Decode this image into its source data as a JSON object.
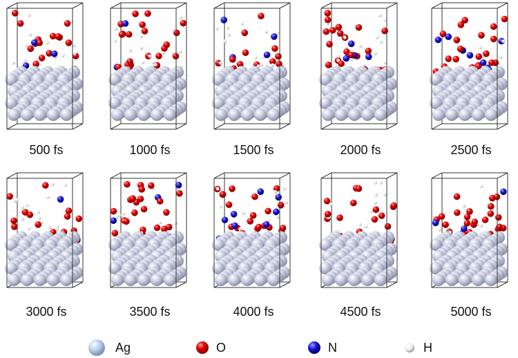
{
  "panels": [
    "500 fs",
    "1000 fs",
    "1500 fs",
    "2000 fs",
    "2500 fs",
    "3000 fs",
    "3500 fs",
    "4000 fs",
    "4500 fs",
    "5000 fs"
  ],
  "legend": [
    "Ag",
    "O",
    "N",
    "H"
  ]
}
